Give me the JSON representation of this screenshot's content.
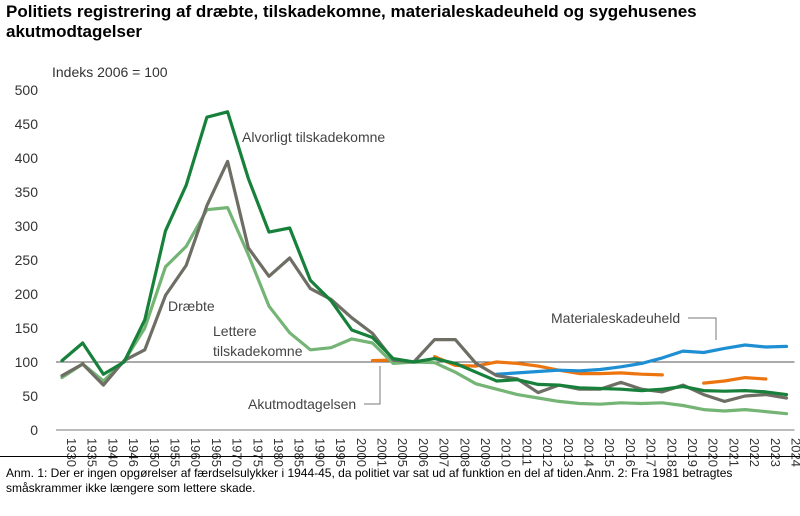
{
  "title": "Politiets registrering af dræbte, tilskadekomne, materialeskadeuheld og sygehusenes akutmodtagelser",
  "note": "Anm. 1: Der er ingen opgørelser af færdselsulykker i 1944-45, da politiet var sat ud af funktion en del af tiden.Anm. 2: Fra 1981 betragtes småskrammer ikke længere som lettere skade.",
  "chart_data": {
    "type": "line",
    "ylabel": "Indeks 2006 = 100",
    "ylim": [
      0,
      500
    ],
    "yticks": [
      0,
      50,
      100,
      150,
      200,
      250,
      300,
      350,
      400,
      450,
      500
    ],
    "categories": [
      "1930",
      "1935",
      "1940",
      "1946",
      "1950",
      "1955",
      "1960",
      "1965",
      "1970",
      "1975",
      "1980",
      "1985",
      "1990",
      "1995",
      "2000",
      "2001",
      "2005",
      "2006",
      "2007",
      "2008",
      "2009",
      "2010",
      "2011",
      "2012",
      "2013",
      "2014",
      "2015",
      "2016",
      "2017",
      "2018",
      "2019",
      "2020",
      "2021",
      "2022",
      "2023",
      "2024"
    ],
    "category_labels": [
      "1930",
      "1935",
      "1940",
      "1946",
      "1950",
      "1955",
      "1960",
      "1965",
      "1970",
      "1975",
      "1980",
      "1985",
      "1990",
      "1995",
      "2000",
      "2001",
      "2005",
      "2006",
      "2007",
      "2008",
      "2009",
      "2010",
      "2011",
      "2012",
      "2013",
      "2014",
      "2015",
      "2016",
      "2017",
      "2018",
      "2019",
      "2020",
      "2021",
      "2022",
      "2023",
      "2024"
    ],
    "reference_line": 100,
    "grid": false,
    "series": [
      {
        "name": "Alvorligt tilskadekomne",
        "color": "#17803a",
        "values": [
          102,
          128,
          82,
          100,
          162,
          293,
          360,
          460,
          468,
          370,
          291,
          297,
          220,
          190,
          147,
          136,
          105,
          100,
          105,
          98,
          85,
          72,
          74,
          67,
          66,
          62,
          61,
          60,
          58,
          60,
          64,
          58,
          57,
          58,
          56,
          52
        ]
      },
      {
        "name": "Dræbte",
        "color": "#6e6e64",
        "values": [
          80,
          97,
          66,
          102,
          118,
          198,
          242,
          330,
          395,
          268,
          226,
          253,
          208,
          192,
          165,
          142,
          103,
          100,
          133,
          133,
          98,
          80,
          75,
          55,
          66,
          60,
          60,
          70,
          60,
          56,
          66,
          52,
          42,
          50,
          52,
          47
        ]
      },
      {
        "name": "Lettere tilskadekomne",
        "color": "#74b474",
        "values": [
          77,
          97,
          72,
          101,
          150,
          240,
          270,
          324,
          327,
          258,
          182,
          143,
          118,
          121,
          134,
          128,
          98,
          100,
          99,
          85,
          68,
          60,
          52,
          47,
          42,
          39,
          38,
          40,
          39,
          40,
          36,
          30,
          28,
          30,
          27,
          24
        ]
      },
      {
        "name": "Materialeskadeuheld",
        "color": "#1f8fd3",
        "values": [
          null,
          null,
          null,
          null,
          null,
          null,
          null,
          null,
          null,
          null,
          null,
          null,
          null,
          null,
          null,
          null,
          null,
          null,
          null,
          null,
          null,
          82,
          84,
          86,
          88,
          87,
          89,
          93,
          98,
          106,
          116,
          114,
          120,
          125,
          122,
          123
        ]
      },
      {
        "name": "Akutmodtagelsen",
        "color": "#ec7510",
        "values": [
          null,
          null,
          null,
          null,
          null,
          null,
          null,
          null,
          null,
          null,
          null,
          null,
          null,
          null,
          null,
          102,
          103,
          null,
          108,
          95,
          94,
          100,
          98,
          94,
          88,
          83,
          83,
          84,
          82,
          81,
          null,
          69,
          72,
          77,
          75,
          null
        ]
      }
    ],
    "annotations": [
      "Alvorligt tilskadekomne",
      "Dræbte",
      "Lettere tilskadekomne",
      "Materialeskadeuheld",
      "Akutmodtagelsen"
    ]
  }
}
